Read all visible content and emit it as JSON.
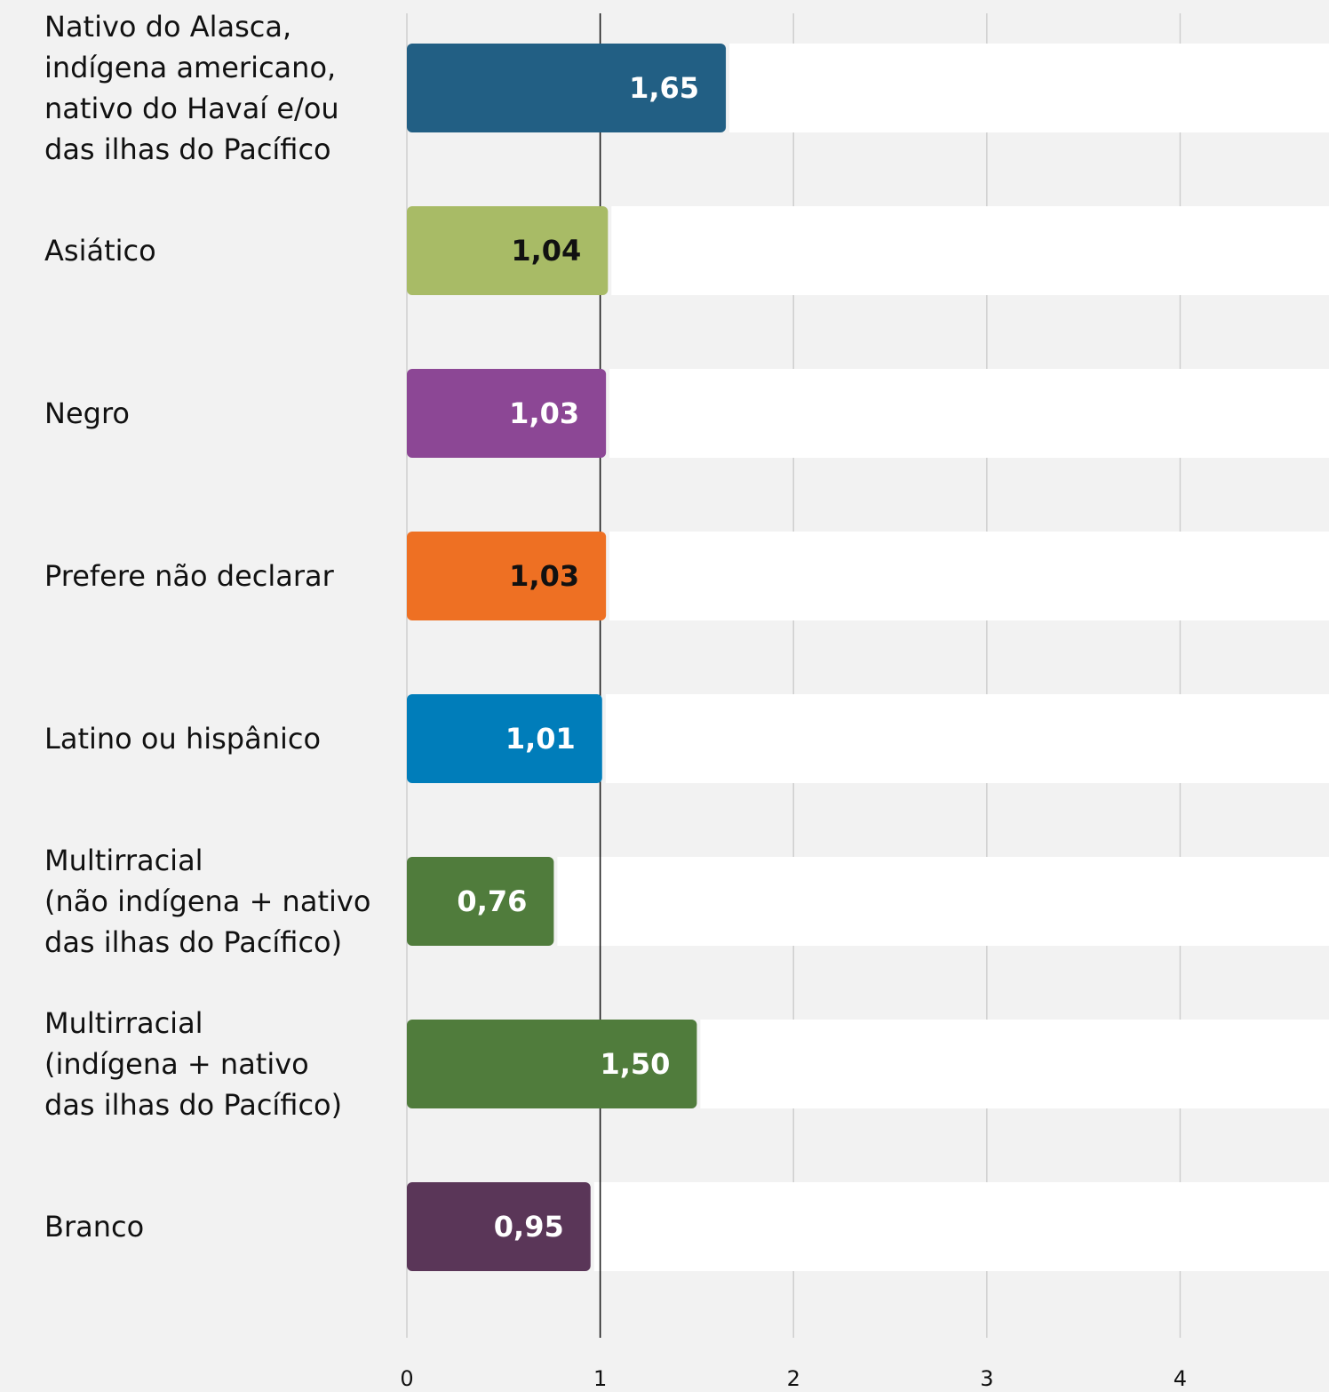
{
  "chart_data": {
    "type": "bar",
    "orientation": "horizontal",
    "categories": [
      "Nativo do Alasca,\nindígena americano,\nnativo do Havaí e/ou\ndas ilhas do Pacífico",
      "Asiático",
      "Negro",
      "Prefere não declarar",
      "Latino ou hispânico",
      "Multirracial\n(não indígena + nativo\ndas ilhas do Pacífico)",
      "Multirracial\n(indígena + nativo\ndas ilhas do Pacífico)",
      "Branco"
    ],
    "values": [
      1.65,
      1.04,
      1.03,
      1.03,
      1.01,
      0.76,
      1.5,
      0.95
    ],
    "value_labels": [
      "1,65",
      "1,04",
      "1,03",
      "1,03",
      "1,01",
      "0,76",
      "1,50",
      "0,95"
    ],
    "colors": [
      "#225f84",
      "#a8bb66",
      "#8c4795",
      "#ee7023",
      "#007dba",
      "#507c3c",
      "#507c3c",
      "#5a3658"
    ],
    "value_label_colors": [
      "#ffffff",
      "#111111",
      "#ffffff",
      "#111111",
      "#ffffff",
      "#ffffff",
      "#ffffff",
      "#ffffff"
    ],
    "xlim": [
      0,
      4.77
    ],
    "xticks": [
      0,
      1,
      2,
      3,
      4
    ],
    "grid": true,
    "reference_line": 1
  }
}
